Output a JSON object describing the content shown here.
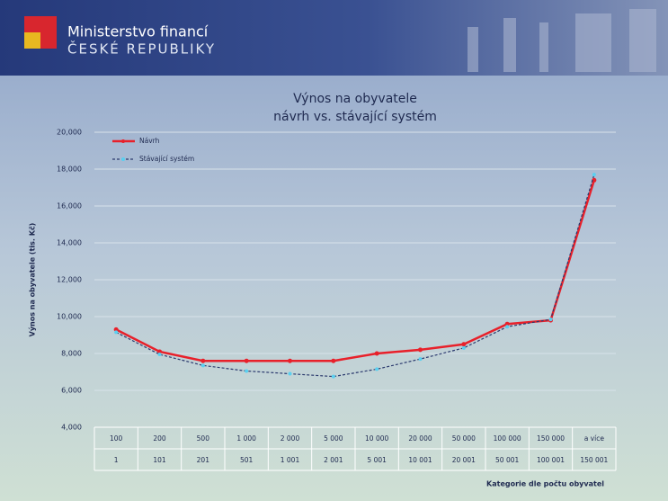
{
  "header": {
    "line1": "Ministerstvo financí",
    "line2": "ČESKÉ REPUBLIKY"
  },
  "chart_data": {
    "type": "line",
    "title": [
      "Výnos na obyvatele",
      "návrh vs. stávající systém"
    ],
    "y_label": "Výnos na obyvatele (tis. Kč)",
    "x_label": "Kategorie dle počtu obyvatel",
    "categories": [
      "100",
      "200",
      "500",
      "1 000",
      "2 000",
      "5 000",
      "10 000",
      "20 000",
      "50 000",
      "100 000",
      "150 000",
      "a více"
    ],
    "categories_lower": [
      "1",
      "101",
      "201",
      "501",
      "1 001",
      "2 001",
      "5 001",
      "10 001",
      "20 001",
      "50 001",
      "100 001",
      "150 001"
    ],
    "series": [
      {
        "name": "Návrh",
        "color": "#e8202a",
        "dash": false,
        "values": [
          9300,
          8100,
          7600,
          7600,
          7600,
          7600,
          8000,
          8200,
          8500,
          9600,
          9800,
          17400
        ]
      },
      {
        "name": "Stávající systém",
        "color": "#2b3a6e",
        "dash": true,
        "marker_color": "#5ad0f0",
        "values": [
          9150,
          7950,
          7350,
          7050,
          6900,
          6750,
          7150,
          7700,
          8300,
          9450,
          9850,
          17700
        ]
      }
    ],
    "ylim": [
      4000,
      20000
    ],
    "yticks": [
      {
        "value": 4000,
        "label": "4,000"
      },
      {
        "value": 6000,
        "label": "6,000"
      },
      {
        "value": 8000,
        "label": "8,000"
      },
      {
        "value": 10000,
        "label": "10,000"
      },
      {
        "value": 12000,
        "label": "12,000"
      },
      {
        "value": 14000,
        "label": "14,000"
      },
      {
        "value": 16000,
        "label": "16,000"
      },
      {
        "value": 18000,
        "label": "18,000"
      },
      {
        "value": 20000,
        "label": "20,000"
      }
    ],
    "grid": true
  }
}
